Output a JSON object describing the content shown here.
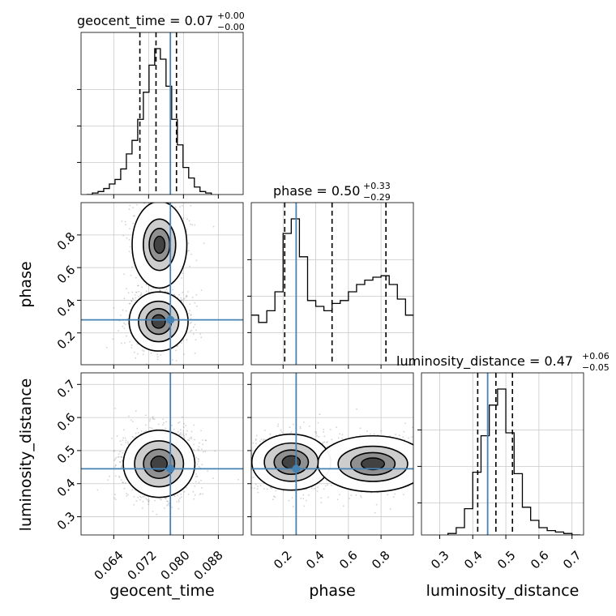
{
  "chart_data": {
    "type": "corner",
    "parameters": [
      "geocent_time",
      "phase",
      "luminosity_distance"
    ],
    "axis_labels": {
      "geocent_time": "geocent_time",
      "phase": "phase",
      "luminosity_distance": "luminosity_distance"
    },
    "titles": [
      {
        "param": "geocent_time",
        "text": "geocent_time = 0.07",
        "plus": "+0.00",
        "minus": "−0.00"
      },
      {
        "param": "phase",
        "text": "phase = 0.50",
        "plus": "+0.33",
        "minus": "−0.29"
      },
      {
        "param": "luminosity_distance",
        "text": "luminosity_distance = 0.47",
        "plus": "+0.06",
        "minus": "−0.05"
      }
    ],
    "ranges": {
      "geocent_time": [
        0.0565,
        0.0937
      ],
      "phase": [
        0.005,
        0.998
      ],
      "luminosity_distance": [
        0.245,
        0.735
      ]
    },
    "ticks": {
      "geocent_time": [
        0.064,
        0.072,
        0.08,
        0.088
      ],
      "phase": [
        0.2,
        0.4,
        0.6,
        0.8
      ],
      "luminosity_distance": [
        0.3,
        0.4,
        0.5,
        0.6,
        0.7
      ]
    },
    "tick_labels": {
      "geocent_time": [
        "0.064",
        "0.072",
        "0.080",
        "0.088"
      ],
      "phase": [
        "0.2",
        "0.4",
        "0.6",
        "0.8"
      ],
      "luminosity_distance": [
        "0.3",
        "0.4",
        "0.5",
        "0.6",
        "0.7"
      ]
    },
    "truths": {
      "geocent_time": 0.077,
      "phase": 0.28,
      "luminosity_distance": 0.445
    },
    "quantiles": {
      "geocent_time": [
        0.07,
        0.0737,
        0.0784
      ],
      "phase": [
        0.21,
        0.5,
        0.83
      ],
      "luminosity_distance": [
        0.415,
        0.47,
        0.52
      ]
    },
    "histograms": {
      "geocent_time": {
        "edges": [
          0.0578,
          0.0591,
          0.0604,
          0.0617,
          0.063,
          0.0643,
          0.0656,
          0.0669,
          0.0682,
          0.0695,
          0.0708,
          0.0721,
          0.0734,
          0.0747,
          0.076,
          0.0773,
          0.0786,
          0.0799,
          0.0812,
          0.0825,
          0.0838,
          0.0851,
          0.0864
        ],
        "counts": [
          0.0,
          0.01,
          0.02,
          0.04,
          0.07,
          0.1,
          0.17,
          0.27,
          0.36,
          0.5,
          0.68,
          0.86,
          0.97,
          0.9,
          0.72,
          0.5,
          0.33,
          0.18,
          0.11,
          0.05,
          0.02,
          0.01
        ]
      },
      "phase": {
        "edges": [
          0.0,
          0.05,
          0.1,
          0.15,
          0.2,
          0.25,
          0.3,
          0.35,
          0.4,
          0.45,
          0.5,
          0.55,
          0.6,
          0.65,
          0.7,
          0.75,
          0.8,
          0.85,
          0.9,
          0.95,
          1.0
        ],
        "counts": [
          0.34,
          0.29,
          0.37,
          0.5,
          0.9,
          1.0,
          0.74,
          0.44,
          0.4,
          0.37,
          0.42,
          0.44,
          0.5,
          0.55,
          0.58,
          0.6,
          0.61,
          0.55,
          0.45,
          0.34
        ]
      },
      "luminosity_distance": {
        "edges": [
          0.325,
          0.35,
          0.375,
          0.4,
          0.425,
          0.45,
          0.475,
          0.5,
          0.525,
          0.55,
          0.575,
          0.6,
          0.625,
          0.65,
          0.675,
          0.7,
          0.725
        ],
        "counts": [
          0.01,
          0.05,
          0.18,
          0.43,
          0.68,
          0.89,
          1.0,
          0.7,
          0.42,
          0.19,
          0.1,
          0.05,
          0.03,
          0.02,
          0.01,
          0.0
        ]
      }
    },
    "pairs": [
      {
        "x": "geocent_time",
        "y": "phase",
        "modes": [
          {
            "x": 0.0743,
            "y": 0.27,
            "sx": 0.0028,
            "sy": 0.075,
            "w": 1.0
          },
          {
            "x": 0.0745,
            "y": 0.74,
            "sx": 0.0026,
            "sy": 0.11,
            "w": 0.75
          }
        ]
      },
      {
        "x": "geocent_time",
        "y": "luminosity_distance",
        "modes": [
          {
            "x": 0.0744,
            "y": 0.46,
            "sx": 0.0034,
            "sy": 0.042,
            "w": 1.0
          }
        ]
      },
      {
        "x": "phase",
        "y": "luminosity_distance",
        "modes": [
          {
            "x": 0.25,
            "y": 0.465,
            "sx": 0.1,
            "sy": 0.035,
            "w": 1.0
          },
          {
            "x": 0.75,
            "y": 0.46,
            "sx": 0.14,
            "sy": 0.035,
            "w": 0.85
          }
        ]
      }
    ],
    "colors": {
      "truth": "#4682b4",
      "histogram": "#000000",
      "grid": "#c8c8c8",
      "points": "#7f7f7f"
    },
    "grid": true
  }
}
